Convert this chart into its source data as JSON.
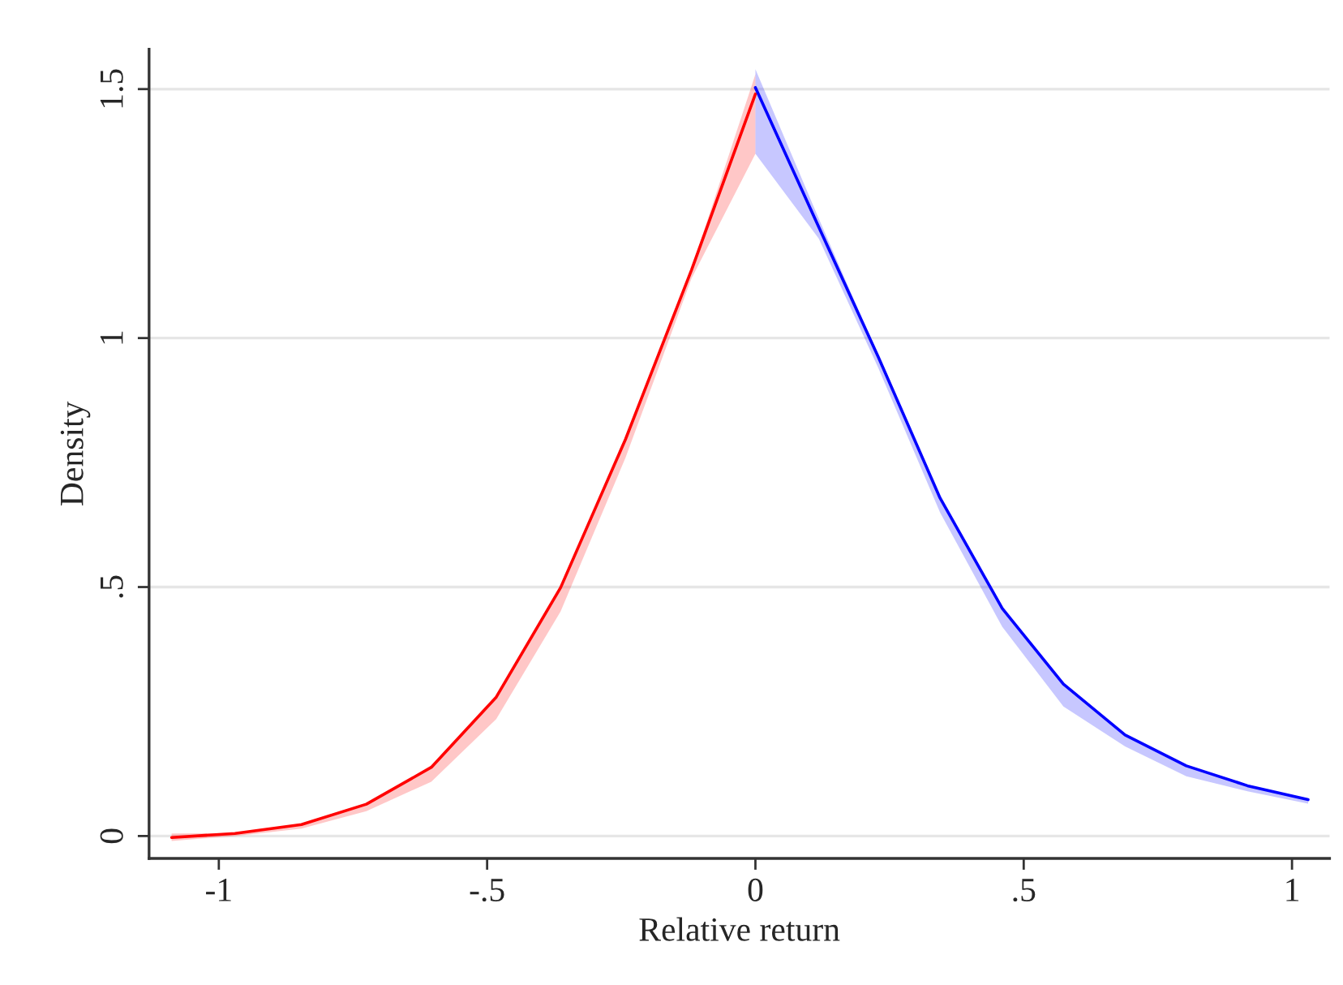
{
  "chart_data": {
    "type": "line",
    "xlabel": "Relative return",
    "ylabel": "Density",
    "xlim": [
      -1.13,
      1.07
    ],
    "ylim": [
      -0.045,
      1.58
    ],
    "xticks": [
      {
        "value": -1,
        "label": "-1"
      },
      {
        "value": -0.5,
        "label": "-.5"
      },
      0,
      {
        "value": 0.5,
        "label": ".5"
      },
      1
    ],
    "yticks": [
      0,
      {
        "value": 0.5,
        "label": ".5"
      },
      1,
      1.5
    ],
    "grid": "y",
    "marker": "none",
    "line_style": "solid",
    "series": [
      {
        "color": "#ff0000",
        "x": [
          -1.088,
          -0.97,
          -0.846,
          -0.725,
          -0.604,
          -0.483,
          -0.363,
          -0.242,
          -0.119,
          0
        ],
        "values": [
          -0.003,
          0.005,
          0.023,
          0.064,
          0.138,
          0.279,
          0.499,
          0.797,
          1.137,
          1.49
        ],
        "lower": [
          -0.01,
          0,
          0.015,
          0.05,
          0.109,
          0.235,
          0.451,
          0.76,
          1.12,
          1.37
        ],
        "upper": [
          0.005,
          0.006,
          0.025,
          0.066,
          0.14,
          0.28,
          0.5,
          0.8,
          1.14,
          1.53
        ]
      },
      {
        "color": "#0000ff",
        "x": [
          0,
          0.118,
          0.229,
          0.344,
          0.46,
          0.574,
          0.689,
          0.803,
          0.917,
          1.03
        ],
        "values": [
          1.503,
          1.223,
          0.962,
          0.679,
          0.457,
          0.305,
          0.203,
          0.141,
          0.101,
          0.073
        ],
        "lower": [
          1.37,
          1.2,
          0.94,
          0.65,
          0.42,
          0.26,
          0.18,
          0.12,
          0.09,
          0.065
        ],
        "upper": [
          1.54,
          1.24,
          0.965,
          0.68,
          0.46,
          0.305,
          0.205,
          0.142,
          0.102,
          0.075
        ]
      }
    ]
  }
}
